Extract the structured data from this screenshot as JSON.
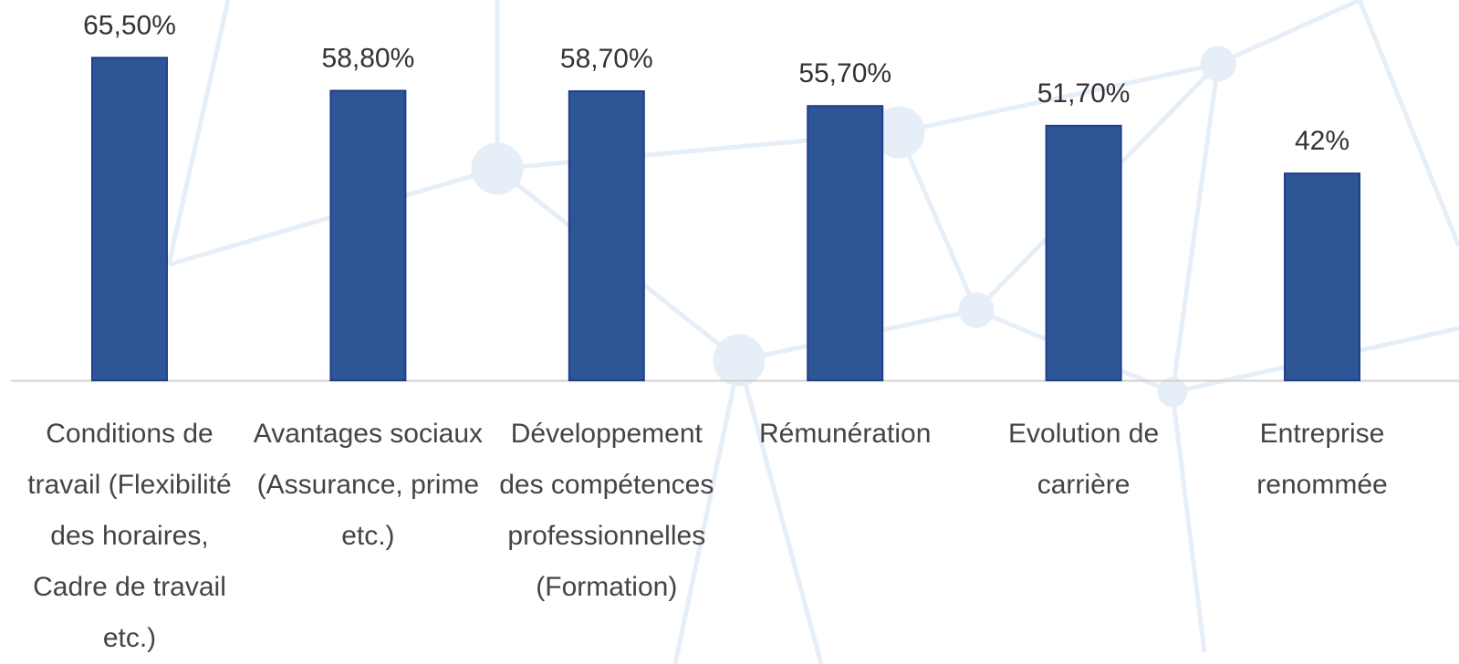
{
  "chart_data": {
    "type": "bar",
    "categories": [
      "Conditions de travail (Flexibilité des horaires, Cadre de travail etc.)",
      "Avantages sociaux (Assurance, prime etc.)",
      "Développement des compétences professionnelles (Formation)",
      "Rémunération",
      "Evolution de carrière",
      "Entreprise renommée"
    ],
    "values": [
      65.5,
      58.8,
      58.7,
      55.7,
      51.7,
      42
    ],
    "value_labels": [
      "65,50%",
      "58,80%",
      "58,70%",
      "55,70%",
      "51,70%",
      "42%"
    ],
    "color": "#2e5596"
  }
}
